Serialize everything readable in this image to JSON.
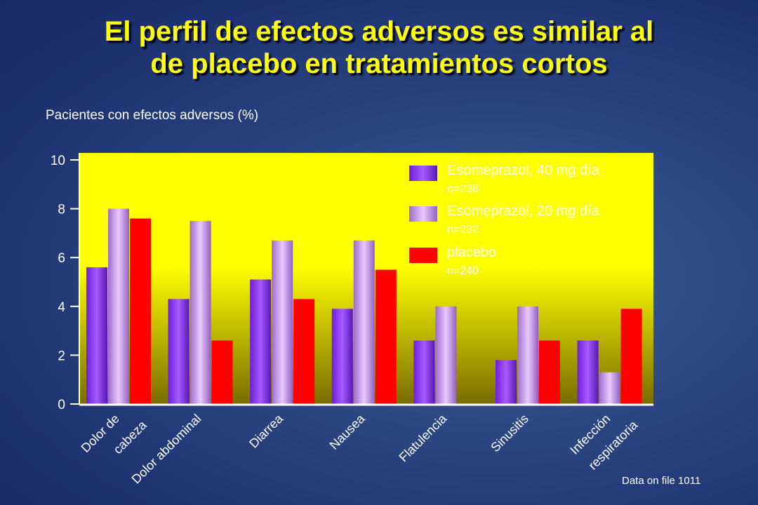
{
  "title": {
    "line1": "El perfil de efectos adversos es similar al",
    "line2": "de placebo en tratamientos cortos"
  },
  "subtitle": "Pacientes con efectos adversos (%)",
  "footnote": "Data on file 1011",
  "colors": {
    "plot_background_top": "#ffff00",
    "plot_background_bottom": "#7a6c00",
    "series_1": "#8a3cf0",
    "series_2": "#c896f0",
    "series_3": "#ff0000",
    "axis": "#ffffff"
  },
  "chart_data": {
    "type": "bar",
    "categories": [
      [
        "Dolor de",
        "cabeza"
      ],
      [
        "Dolor abdominal"
      ],
      [
        "Diarrea"
      ],
      [
        "Nausea"
      ],
      [
        "Flatulencia"
      ],
      [
        "Sinusitis"
      ],
      [
        "Infección",
        "respiratoria"
      ]
    ],
    "series": [
      {
        "name": "Esomeprazol, 40 mg día",
        "n": "n=238",
        "values": [
          5.6,
          4.3,
          5.1,
          3.9,
          2.6,
          1.8,
          2.6
        ]
      },
      {
        "name": "Esomeprazol, 20 mg día",
        "n": "n=232",
        "values": [
          8.0,
          7.5,
          6.7,
          6.7,
          4.0,
          4.0,
          1.3
        ]
      },
      {
        "name": "placebo",
        "n": "n=240",
        "values": [
          7.6,
          2.6,
          4.3,
          5.5,
          0,
          2.6,
          3.9
        ]
      }
    ],
    "yticks": [
      "0",
      "2",
      "4",
      "6",
      "8",
      "10"
    ],
    "ylim": [
      0,
      10
    ],
    "legend_position": "top-right",
    "grid": false
  }
}
